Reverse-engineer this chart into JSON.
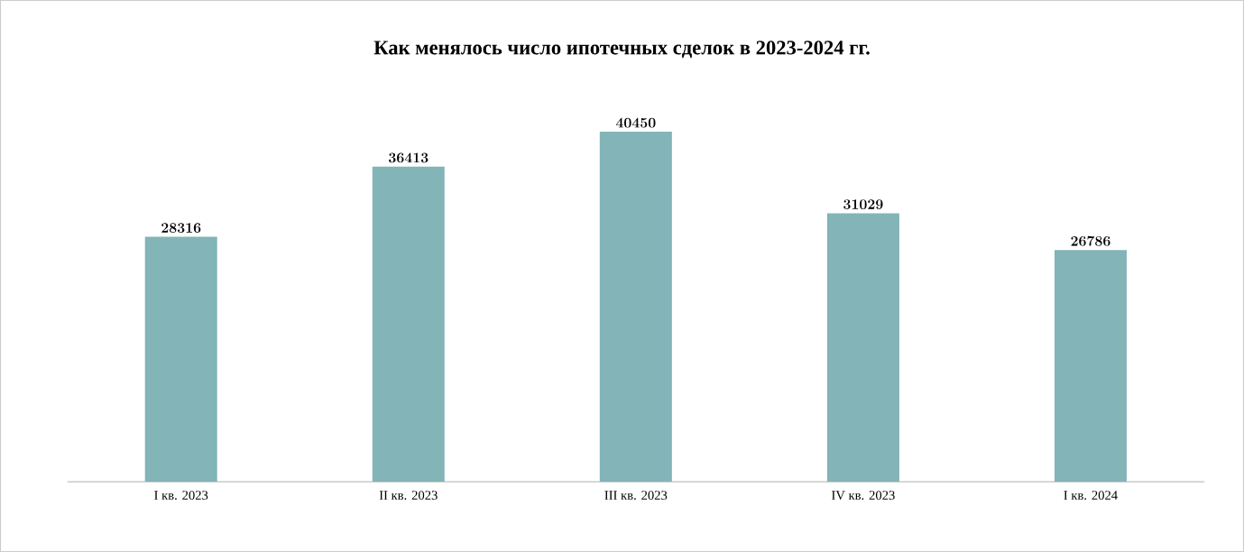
{
  "chart_data": {
    "type": "bar",
    "title": "Как менялось число ипотечных сделок в 2023-2024 гг.",
    "categories": [
      "I кв. 2023",
      "II кв. 2023",
      "III кв. 2023",
      "IV кв. 2023",
      "I кв. 2024"
    ],
    "values": [
      28316,
      36413,
      40450,
      31029,
      26786
    ],
    "color": "#82b4b8",
    "tick_labels": "x",
    "data_labels": true
  }
}
